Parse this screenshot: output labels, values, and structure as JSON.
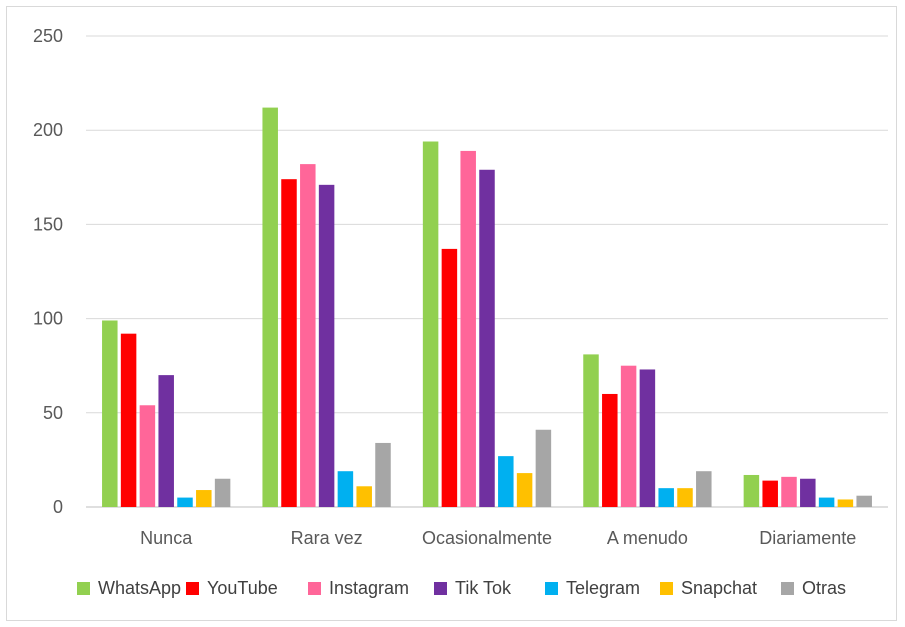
{
  "chart_data": {
    "type": "bar",
    "categories": [
      "Nunca",
      "Rara vez",
      "Ocasionalmente",
      "A menudo",
      "Diariamente"
    ],
    "series": [
      {
        "name": "WhatsApp",
        "color": "#92d050",
        "values": [
          99,
          212,
          194,
          81,
          17
        ]
      },
      {
        "name": "YouTube",
        "color": "#ff0000",
        "values": [
          92,
          174,
          137,
          60,
          14
        ]
      },
      {
        "name": "Instagram",
        "color": "#ff6699",
        "values": [
          54,
          182,
          189,
          75,
          16
        ]
      },
      {
        "name": "Tik Tok",
        "color": "#7030a0",
        "values": [
          70,
          171,
          179,
          73,
          15
        ]
      },
      {
        "name": "Telegram",
        "color": "#00b0f0",
        "values": [
          5,
          19,
          27,
          10,
          5
        ]
      },
      {
        "name": "Snapchat",
        "color": "#ffc000",
        "values": [
          9,
          11,
          18,
          10,
          4
        ]
      },
      {
        "name": "Otras",
        "color": "#a6a6a6",
        "values": [
          15,
          34,
          41,
          19,
          6
        ]
      }
    ],
    "ylim": [
      0,
      250
    ],
    "yticks": [
      0,
      50,
      100,
      150,
      200,
      250
    ],
    "grid": true,
    "legend_position": "bottom",
    "title": "",
    "xlabel": "",
    "ylabel": ""
  }
}
